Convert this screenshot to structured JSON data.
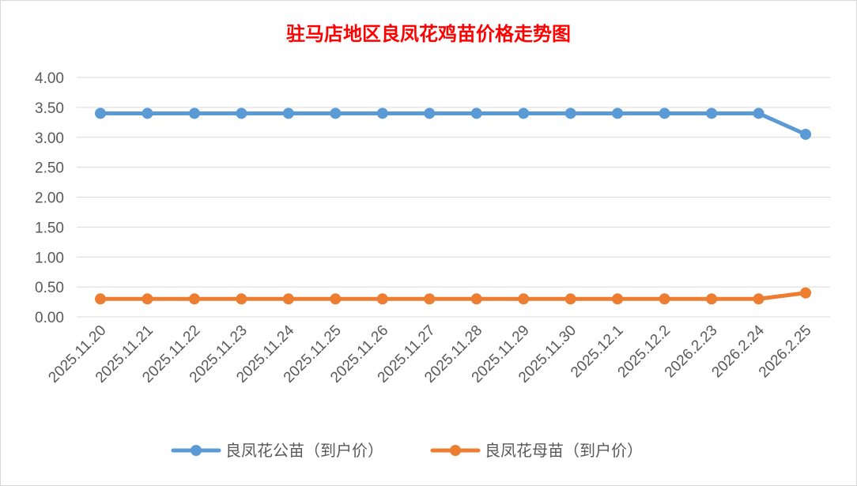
{
  "chart_data": {
    "type": "line",
    "title": "驻马店地区良凤花鸡苗价格走势图",
    "categories": [
      "2025.11.20",
      "2025.11.21",
      "2025.11.22",
      "2025.11.23",
      "2025.11.24",
      "2025.11.25",
      "2025.11.26",
      "2025.11.27",
      "2025.11.28",
      "2025.11.29",
      "2025.11.30",
      "2025.12.1",
      "2025.12.2",
      "2026.2.23",
      "2026.2.24",
      "2026.2.25"
    ],
    "ylim": [
      0,
      4
    ],
    "yticks": [
      "0.00",
      "0.50",
      "1.00",
      "1.50",
      "2.00",
      "2.50",
      "3.00",
      "3.50",
      "4.00"
    ],
    "grid": true,
    "legend_position": "bottom",
    "series": [
      {
        "name": "良凤花公苗（到户价）",
        "color": "#5b9bd5",
        "values": [
          3.4,
          3.4,
          3.4,
          3.4,
          3.4,
          3.4,
          3.4,
          3.4,
          3.4,
          3.4,
          3.4,
          3.4,
          3.4,
          3.4,
          3.4,
          3.05
        ]
      },
      {
        "name": "良凤花母苗（到户价）",
        "color": "#ed7d31",
        "values": [
          0.3,
          0.3,
          0.3,
          0.3,
          0.3,
          0.3,
          0.3,
          0.3,
          0.3,
          0.3,
          0.3,
          0.3,
          0.3,
          0.3,
          0.3,
          0.4
        ]
      }
    ]
  }
}
